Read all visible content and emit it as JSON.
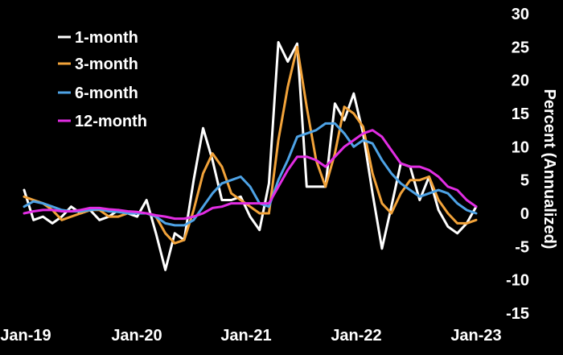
{
  "chart_data": {
    "type": "line",
    "title": "",
    "xlabel": "",
    "ylabel": "Percent (Annualized)",
    "ylim": [
      -15,
      30
    ],
    "yticks": [
      30,
      25,
      20,
      15,
      10,
      5,
      0,
      -5,
      -10,
      -15
    ],
    "xticks": [
      "Jan-19",
      "Jan-20",
      "Jan-21",
      "Jan-22",
      "Jan-23"
    ],
    "x_start": "Jan-19",
    "x_end": "Jan-23",
    "legend_position": "top-left",
    "grid": false,
    "background": "#000000",
    "series": [
      {
        "name": "1-month",
        "color": "#ffffff",
        "values": [
          3.5,
          -1.0,
          -0.5,
          -1.5,
          -0.5,
          1.0,
          0.0,
          0.5,
          -1.0,
          -0.5,
          0.5,
          0.0,
          -0.5,
          2.0,
          -3.0,
          -8.5,
          -3.0,
          -4.0,
          5.0,
          12.8,
          8.0,
          2.0,
          2.0,
          2.5,
          -0.5,
          -2.5,
          4.5,
          25.7,
          22.8,
          25.5,
          4.0,
          4.0,
          4.0,
          16.5,
          14.0,
          18.0,
          12.0,
          3.0,
          -5.3,
          1.0,
          7.5,
          7.0,
          2.0,
          5.5,
          0.5,
          -2.0,
          -3.0,
          -1.5,
          1.0
        ]
      },
      {
        "name": "3-month",
        "color": "#f2a33a",
        "values": [
          2.5,
          2.0,
          1.5,
          0.5,
          -1.0,
          -0.5,
          0.0,
          0.5,
          0.5,
          -0.5,
          -0.5,
          0.0,
          0.0,
          0.0,
          -0.5,
          -3.0,
          -4.5,
          -4.0,
          0.5,
          6.0,
          9.0,
          7.0,
          3.0,
          2.0,
          1.0,
          0.0,
          0.0,
          11.0,
          19.0,
          25.0,
          16.0,
          8.0,
          4.0,
          9.0,
          16.0,
          15.0,
          13.0,
          6.0,
          1.5,
          0.0,
          3.0,
          5.0,
          5.0,
          5.5,
          2.0,
          0.0,
          -1.5,
          -1.5,
          -1.0
        ]
      },
      {
        "name": "6-month",
        "color": "#4ea3e6",
        "values": [
          1.0,
          1.8,
          1.5,
          1.0,
          0.5,
          0.3,
          0.3,
          0.5,
          0.6,
          0.3,
          0.2,
          0.0,
          0.0,
          0.0,
          -0.5,
          -1.5,
          -1.8,
          -1.8,
          -1.0,
          1.0,
          3.0,
          4.5,
          5.0,
          5.5,
          4.0,
          1.5,
          1.0,
          5.0,
          8.0,
          11.5,
          12.0,
          12.5,
          13.5,
          13.5,
          12.0,
          10.0,
          11.0,
          10.5,
          8.0,
          6.0,
          4.5,
          3.5,
          2.5,
          3.0,
          3.5,
          3.0,
          1.5,
          0.5,
          0.0
        ]
      },
      {
        "name": "12-month",
        "color": "#e22de3",
        "values": [
          0.0,
          0.3,
          0.5,
          0.5,
          0.3,
          0.3,
          0.5,
          0.8,
          0.8,
          0.6,
          0.5,
          0.3,
          0.2,
          0.0,
          -0.3,
          -0.5,
          -0.8,
          -0.8,
          -0.5,
          0.0,
          0.8,
          1.0,
          1.5,
          1.5,
          1.5,
          1.5,
          1.5,
          4.0,
          6.5,
          8.5,
          8.5,
          8.0,
          7.0,
          8.5,
          10.0,
          11.0,
          12.0,
          12.5,
          11.5,
          9.5,
          7.5,
          7.0,
          7.0,
          6.5,
          5.5,
          4.0,
          3.5,
          2.0,
          1.0
        ]
      }
    ]
  }
}
